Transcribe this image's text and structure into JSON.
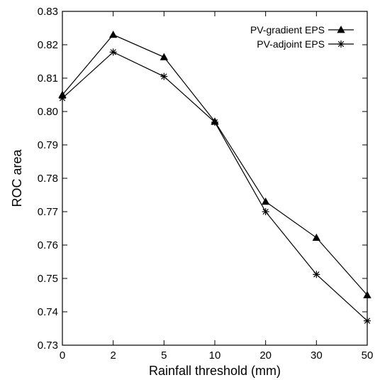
{
  "chart_data": {
    "type": "line",
    "title": "",
    "xlabel": "Rainfall threshold (mm)",
    "ylabel": "ROC area",
    "categories": [
      "0",
      "2",
      "5",
      "10",
      "20",
      "30",
      "50"
    ],
    "ylim": [
      0.73,
      0.83
    ],
    "yticks": [
      "0.73",
      "0.74",
      "0.75",
      "0.76",
      "0.77",
      "0.78",
      "0.79",
      "0.80",
      "0.81",
      "0.82",
      "0.83"
    ],
    "grid": false,
    "legend_position": "top-right",
    "series": [
      {
        "name": "PV-gradient EPS",
        "marker": "triangle",
        "values": [
          0.805,
          0.823,
          0.8163,
          0.797,
          0.773,
          0.7622,
          0.745
        ]
      },
      {
        "name": "PV-adjoint EPS",
        "marker": "star",
        "values": [
          0.804,
          0.8178,
          0.8105,
          0.7968,
          0.77,
          0.7512,
          0.7373
        ]
      }
    ]
  }
}
